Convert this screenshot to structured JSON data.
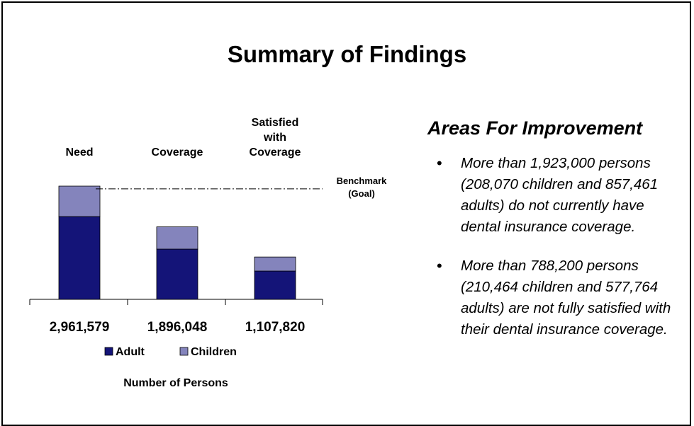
{
  "title": "Summary of Findings",
  "chart_data": {
    "type": "bar",
    "stacked": true,
    "categories": [
      "Need",
      "Coverage",
      "Satisfied with Coverage"
    ],
    "series": [
      {
        "name": "Adult",
        "color": "#141478",
        "values": [
          2165579,
          1314048,
          739820
        ]
      },
      {
        "name": "Children",
        "color": "#8484bc",
        "values": [
          796000,
          582000,
          368000
        ]
      }
    ],
    "totals": [
      2961579,
      1896048,
      1107820
    ],
    "total_labels": [
      "2,961,579",
      "1,896,048",
      "1,107,820"
    ],
    "xlabel": "Number of Persons",
    "benchmark": {
      "label": "Benchmark (Goal)",
      "value": 2890000
    }
  },
  "panel": {
    "heading": "Areas For Improvement",
    "bullets": [
      "More than 1,923,000 persons (208,070 children and 857,461 adults) do not currently have dental insurance coverage.",
      "More than 788,200 persons (210,464 children and 577,764 adults) are not fully satisfied with their dental insurance coverage."
    ]
  }
}
